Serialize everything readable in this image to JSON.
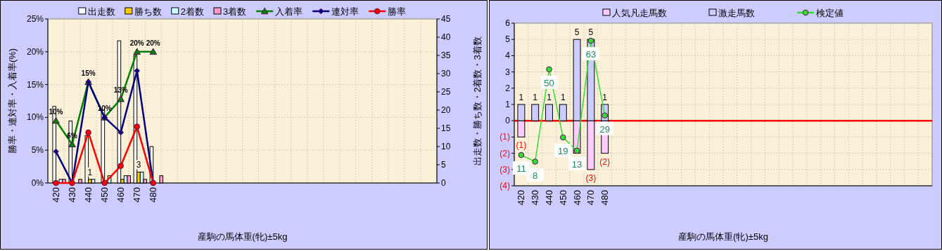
{
  "chart_data": [
    {
      "type": "bar",
      "xlabel": "産駒の馬体重(牝)±5kg",
      "ylabel": "勝率・連対率・入着率(%)",
      "y2label": "出走数・勝ち数・2着数・3着数",
      "categories": [
        "420",
        "430",
        "440",
        "450",
        "460",
        "470",
        "480",
        null,
        null,
        null,
        null,
        null,
        null,
        null,
        null,
        null,
        null,
        null,
        null,
        null,
        null,
        null,
        null,
        null
      ],
      "ylim": [
        0,
        25
      ],
      "yticks": [
        {
          "value": 0,
          "label": "0%"
        },
        {
          "value": 5,
          "label": "5%"
        },
        {
          "value": 10,
          "label": "10%"
        },
        {
          "value": 15,
          "label": "15%"
        },
        {
          "value": 20,
          "label": "20%"
        },
        {
          "value": 25,
          "label": "25%"
        }
      ],
      "y2lim": [
        0,
        45
      ],
      "y2ticks": [
        0,
        5,
        10,
        15,
        20,
        25,
        30,
        35,
        40,
        45
      ],
      "grid": true,
      "legend": "top",
      "series": [
        {
          "name": "出走数",
          "axis": "y2",
          "color": "#ffffff",
          "values": [
            21,
            17,
            13,
            20,
            39,
            35,
            10,
            null,
            null,
            null,
            null,
            null,
            null,
            null,
            null,
            null,
            null,
            null,
            null,
            null,
            null,
            null,
            null,
            null
          ]
        },
        {
          "name": "勝ち数",
          "axis": "y2",
          "color": "#ffcc00",
          "values": [
            0,
            0,
            1,
            0,
            1,
            3,
            0,
            null,
            null,
            null,
            null,
            null,
            null,
            null,
            null,
            null,
            null,
            null,
            null,
            null,
            null,
            null,
            null,
            null
          ],
          "value_labels": [
            null,
            null,
            "1",
            null,
            null,
            "3",
            null,
            null,
            null,
            null,
            null,
            null,
            null,
            null,
            null,
            null,
            null,
            null,
            null,
            null,
            null,
            null,
            null,
            null
          ]
        },
        {
          "name": "2着数",
          "axis": "y2",
          "color": "#ccffff",
          "values": [
            1,
            0,
            1,
            2,
            2,
            3,
            0,
            null,
            null,
            null,
            null,
            null,
            null,
            null,
            null,
            null,
            null,
            null,
            null,
            null,
            null,
            null,
            null,
            null
          ]
        },
        {
          "name": "3着数",
          "axis": "y2",
          "color": "#ff99cc",
          "values": [
            1,
            1,
            0,
            0,
            2,
            1,
            2,
            null,
            null,
            null,
            null,
            null,
            null,
            null,
            null,
            null,
            null,
            null,
            null,
            null,
            null,
            null,
            null,
            null
          ]
        },
        {
          "name": "入着率",
          "type": "line",
          "color": "#008000",
          "marker": "triangle",
          "values": [
            9.5,
            5.9,
            15.4,
            10,
            12.8,
            20,
            20,
            null,
            null,
            null,
            null,
            null,
            null,
            null,
            null,
            null,
            null,
            null,
            null,
            null,
            null,
            null,
            null,
            null
          ],
          "value_labels": [
            "10%",
            "6%",
            "15%",
            "10%",
            "13%",
            "20%",
            "20%",
            null,
            null,
            null,
            null,
            null,
            null,
            null,
            null,
            null,
            null,
            null,
            null,
            null,
            null,
            null,
            null,
            null
          ]
        },
        {
          "name": "連対率",
          "type": "line",
          "color": "#000080",
          "marker": "diamond",
          "values": [
            4.8,
            0,
            15.4,
            10,
            7.7,
            17.1,
            0,
            null,
            null,
            null,
            null,
            null,
            null,
            null,
            null,
            null,
            null,
            null,
            null,
            null,
            null,
            null,
            null,
            null
          ]
        },
        {
          "name": "勝率",
          "type": "line",
          "color": "#ff0000",
          "marker": "circle",
          "values": [
            0,
            0,
            7.7,
            0,
            2.6,
            8.6,
            0,
            null,
            null,
            null,
            null,
            null,
            null,
            null,
            null,
            null,
            null,
            null,
            null,
            null,
            null,
            null,
            null,
            null
          ]
        }
      ]
    },
    {
      "type": "bar",
      "stacked": true,
      "xlabel": "産駒の馬体重(牝)±5kg",
      "categories": [
        "420",
        "430",
        "440",
        "450",
        "460",
        "470",
        "480",
        null,
        null,
        null,
        null,
        null,
        null,
        null,
        null,
        null,
        null,
        null,
        null,
        null,
        null,
        null,
        null,
        null,
        null,
        null,
        null,
        null,
        null,
        null
      ],
      "ylim": [
        -4,
        6
      ],
      "yticks": [
        {
          "value": -4,
          "label": "(4)"
        },
        {
          "value": -3,
          "label": "(3)"
        },
        {
          "value": -2,
          "label": "(2)"
        },
        {
          "value": -1,
          "label": "(1)"
        },
        0,
        1,
        2,
        3,
        4,
        5,
        6
      ],
      "y2lim": [
        -3,
        71
      ],
      "grid": true,
      "legend": "top",
      "ref_lines": [
        {
          "axis": "y",
          "value": 0,
          "color": "#ff0000"
        }
      ],
      "series": [
        {
          "name": "人気凡走馬数",
          "color": "#ffccff",
          "values": [
            -1,
            0,
            0,
            0,
            -2,
            -3,
            -2,
            null,
            null,
            null,
            null,
            null,
            null,
            null,
            null,
            null,
            null,
            null,
            null,
            null,
            null,
            null,
            null,
            null,
            null,
            null,
            null,
            null,
            null,
            null
          ],
          "value_labels": [
            "(1)",
            null,
            null,
            null,
            null,
            "(3)",
            "(2)",
            null,
            null,
            null,
            null,
            null,
            null,
            null,
            null,
            null,
            null,
            null,
            null,
            null,
            null,
            null,
            null,
            null,
            null,
            null,
            null,
            null,
            null,
            null
          ]
        },
        {
          "name": "激走馬数",
          "color": "#ccccff",
          "values": [
            1,
            1,
            1,
            1,
            5,
            5,
            1,
            null,
            null,
            null,
            null,
            null,
            null,
            null,
            null,
            null,
            null,
            null,
            null,
            null,
            null,
            null,
            null,
            null,
            null,
            null,
            null,
            null,
            null,
            null
          ],
          "value_labels": [
            "1",
            "1",
            "1",
            "1",
            "5",
            "5",
            "1",
            null,
            null,
            null,
            null,
            null,
            null,
            null,
            null,
            null,
            null,
            null,
            null,
            null,
            null,
            null,
            null,
            null,
            null,
            null,
            null,
            null,
            null,
            null
          ]
        },
        {
          "name": "検定値",
          "type": "line",
          "axis": "y2",
          "color": "#33dd33",
          "marker": "circle",
          "values": [
            11,
            8,
            50,
            19,
            13,
            63,
            29,
            null,
            null,
            null,
            null,
            null,
            null,
            null,
            null,
            null,
            null,
            null,
            null,
            null,
            null,
            null,
            null,
            null,
            null,
            null,
            null,
            null,
            null,
            null
          ],
          "value_labels": [
            "11",
            "8",
            "50",
            "19",
            "13",
            "63",
            "29",
            null,
            null,
            null,
            null,
            null,
            null,
            null,
            null,
            null,
            null,
            null,
            null,
            null,
            null,
            null,
            null,
            null,
            null,
            null,
            null,
            null,
            null,
            null
          ]
        }
      ]
    }
  ]
}
